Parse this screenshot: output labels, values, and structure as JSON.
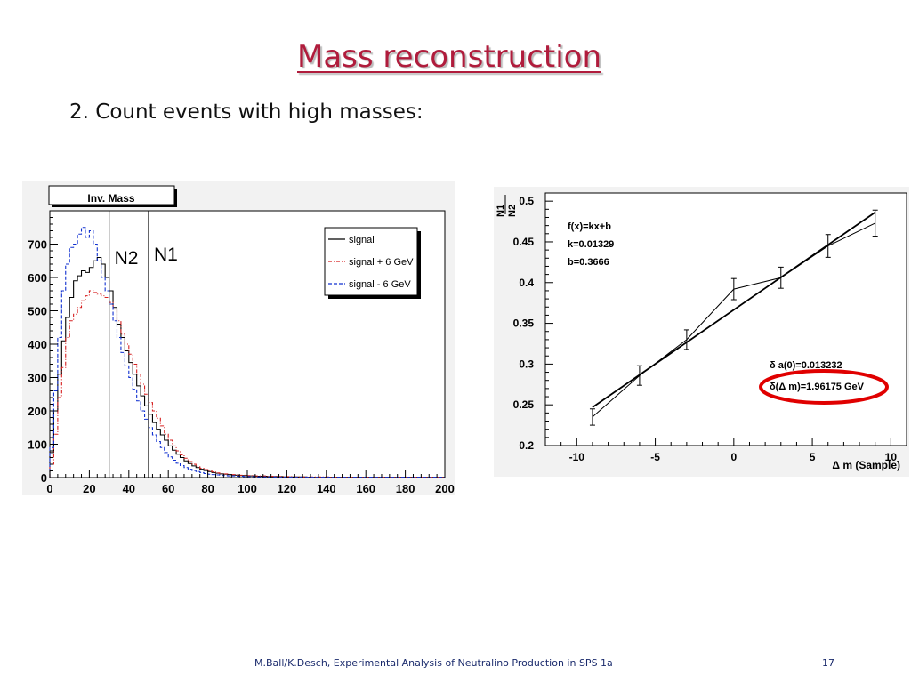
{
  "slide": {
    "title": "Mass reconstruction",
    "bullet": "2. Count events with high masses:",
    "footer_credit": "M.Ball/K.Desch, Experimental Analysis of Neutralino Production in SPS 1a",
    "page_number": "17"
  },
  "colors": {
    "title": "#b01c3c",
    "signal": "#000000",
    "signal_plus": "#d62020",
    "signal_minus": "#1030d0",
    "highlight": "#e00000",
    "footer": "#1a2a6c"
  },
  "chart_data": [
    {
      "type": "line",
      "title": "Inv. Mass",
      "xlim": [
        0,
        200
      ],
      "ylim": [
        0,
        800
      ],
      "xticks": [
        "0",
        "20",
        "40",
        "60",
        "80",
        "100",
        "120",
        "140",
        "160",
        "180",
        "200"
      ],
      "yticks": [
        "0",
        "100",
        "200",
        "300",
        "400",
        "500",
        "600",
        "700"
      ],
      "grid": false,
      "legend_position": "top-right",
      "bin_width": 2,
      "cut_lines": [
        {
          "label": "N2",
          "x": 30
        },
        {
          "label": "N1",
          "x": 50
        }
      ],
      "series": [
        {
          "name": "signal",
          "style": "solid",
          "color": "#000000",
          "values": [
            75,
            200,
            310,
            410,
            480,
            540,
            590,
            605,
            620,
            615,
            630,
            650,
            660,
            640,
            600,
            560,
            510,
            460,
            420,
            380,
            345,
            310,
            275,
            245,
            215,
            190,
            165,
            145,
            128,
            112,
            95,
            82,
            70,
            60,
            50,
            42,
            35,
            30,
            25,
            21,
            18,
            15,
            13,
            11,
            10,
            9,
            8,
            7,
            6,
            6,
            5,
            5,
            4,
            4,
            4,
            3,
            3,
            3,
            3,
            2,
            2,
            2,
            2,
            2,
            2,
            1,
            1,
            1,
            1,
            1,
            1,
            1,
            1,
            1,
            1,
            1,
            1,
            1,
            1,
            1,
            1,
            1,
            1,
            1,
            1,
            1,
            1,
            1,
            1,
            1,
            1,
            1,
            1,
            1,
            1,
            1,
            1,
            1,
            1,
            1
          ]
        },
        {
          "name": "signal + 6 GeV",
          "style": "dashdot",
          "color": "#d62020",
          "values": [
            40,
            130,
            240,
            330,
            420,
            470,
            490,
            510,
            530,
            545,
            560,
            555,
            550,
            545,
            540,
            525,
            505,
            470,
            430,
            400,
            370,
            340,
            310,
            280,
            250,
            225,
            200,
            178,
            155,
            130,
            112,
            95,
            80,
            68,
            58,
            48,
            40,
            34,
            28,
            24,
            20,
            17,
            14,
            12,
            11,
            10,
            9,
            8,
            7,
            7,
            6,
            6,
            5,
            5,
            5,
            4,
            4,
            4,
            3,
            3,
            3,
            3,
            2,
            2,
            2,
            2,
            2,
            2,
            2,
            2,
            2,
            1,
            1,
            1,
            1,
            1,
            1,
            1,
            1,
            1,
            1,
            1,
            1,
            1,
            1,
            1,
            1,
            1,
            1,
            1,
            1,
            1,
            1,
            1,
            1,
            1,
            1,
            1,
            1,
            1
          ]
        },
        {
          "name": "signal - 6 GeV",
          "style": "dashed",
          "color": "#1030d0",
          "values": [
            90,
            260,
            420,
            560,
            640,
            690,
            700,
            730,
            750,
            720,
            740,
            700,
            650,
            600,
            560,
            520,
            470,
            420,
            375,
            335,
            300,
            265,
            230,
            200,
            175,
            150,
            128,
            108,
            90,
            75,
            62,
            52,
            43,
            36,
            30,
            25,
            21,
            18,
            15,
            12,
            10,
            9,
            8,
            7,
            6,
            5,
            5,
            4,
            4,
            3,
            3,
            3,
            2,
            2,
            2,
            2,
            2,
            1,
            1,
            1,
            1,
            1,
            1,
            1,
            1,
            1,
            1,
            1,
            1,
            1,
            1,
            1,
            1,
            1,
            1,
            1,
            1,
            1,
            1,
            1,
            1,
            1,
            1,
            1,
            1,
            1,
            1,
            1,
            1,
            1,
            1,
            1,
            1,
            1,
            1,
            1,
            1,
            1,
            1,
            1
          ]
        }
      ]
    },
    {
      "type": "scatter",
      "title": "",
      "xlabel": "Δ m (Sample)",
      "ylabel_top": "N1",
      "ylabel_bottom": "N2",
      "xlim": [
        -12,
        11
      ],
      "ylim": [
        0.2,
        0.51
      ],
      "xticks": [
        "-10",
        "-5",
        "0",
        "5",
        "10"
      ],
      "yticks": [
        "0.2",
        "0.25",
        "0.3",
        "0.35",
        "0.4",
        "0.45",
        "0.5"
      ],
      "grid": false,
      "fit_text": [
        "f(x)=kx+b",
        "k=0.01329",
        "b=0.3666"
      ],
      "fit": {
        "k": 0.01329,
        "b": 0.3666
      },
      "stats_text": [
        "δ a(0)=0.013232",
        "δ(Δ m)=1.96175 GeV"
      ],
      "points": [
        {
          "x": -9,
          "y": 0.235,
          "err": 0.01
        },
        {
          "x": -6,
          "y": 0.286,
          "err": 0.012
        },
        {
          "x": -3,
          "y": 0.33,
          "err": 0.012
        },
        {
          "x": 0,
          "y": 0.392,
          "err": 0.013
        },
        {
          "x": 3,
          "y": 0.406,
          "err": 0.013
        },
        {
          "x": 6,
          "y": 0.445,
          "err": 0.014
        },
        {
          "x": 9,
          "y": 0.473,
          "err": 0.016
        }
      ]
    }
  ]
}
